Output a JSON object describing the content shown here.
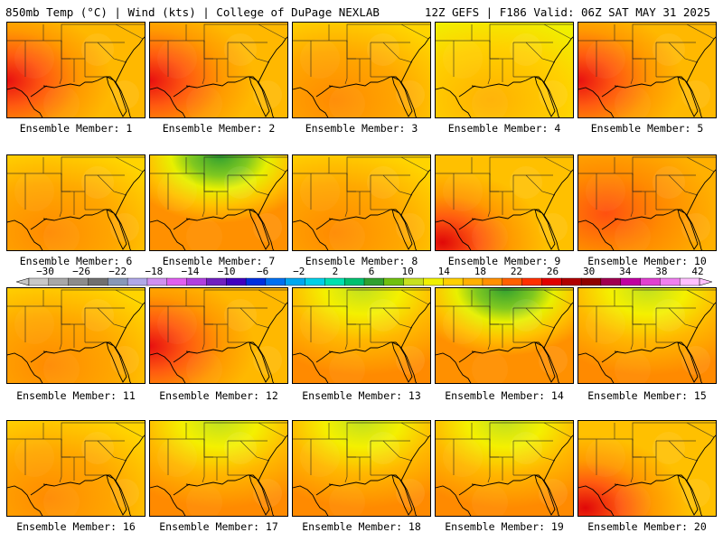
{
  "header": {
    "title_left": "850mb Temp (°C) | Wind (kts) | College of DuPage NEXLAB",
    "title_right": "12Z GEFS | F186 Valid: 06Z SAT MAY 31 2025"
  },
  "members": [
    {
      "label": "Ensemble Member: 1",
      "pattern": "hot-west"
    },
    {
      "label": "Ensemble Member: 2",
      "pattern": "hot-west"
    },
    {
      "label": "Ensemble Member: 3",
      "pattern": "warm"
    },
    {
      "label": "Ensemble Member: 4",
      "pattern": "mild"
    },
    {
      "label": "Ensemble Member: 5",
      "pattern": "hot-west"
    },
    {
      "label": "Ensemble Member: 6",
      "pattern": "warm"
    },
    {
      "label": "Ensemble Member: 7",
      "pattern": "cool-north"
    },
    {
      "label": "Ensemble Member: 8",
      "pattern": "warm"
    },
    {
      "label": "Ensemble Member: 9",
      "pattern": "hot-sw"
    },
    {
      "label": "Ensemble Member: 10",
      "pattern": "hot"
    },
    {
      "label": "Ensemble Member: 11",
      "pattern": "warm"
    },
    {
      "label": "Ensemble Member: 12",
      "pattern": "hot-west"
    },
    {
      "label": "Ensemble Member: 13",
      "pattern": "warm-north-mild"
    },
    {
      "label": "Ensemble Member: 14",
      "pattern": "cool-north"
    },
    {
      "label": "Ensemble Member: 15",
      "pattern": "warm-north-mild"
    },
    {
      "label": "Ensemble Member: 16",
      "pattern": "warm"
    },
    {
      "label": "Ensemble Member: 17",
      "pattern": "warm-north-mild"
    },
    {
      "label": "Ensemble Member: 18",
      "pattern": "warm-north-mild"
    },
    {
      "label": "Ensemble Member: 19",
      "pattern": "warm-north-mild"
    },
    {
      "label": "Ensemble Member: 20",
      "pattern": "hot-sw"
    }
  ],
  "colorbar": {
    "labels": [
      "−30",
      "−26",
      "−22",
      "−18",
      "−14",
      "−10",
      "−6",
      "−2",
      "2",
      "6",
      "10",
      "14",
      "18",
      "22",
      "26",
      "30",
      "34",
      "38",
      "42"
    ],
    "colors": [
      "#c8c8c8",
      "#a8a8a8",
      "#8c8c8c",
      "#707070",
      "#8898b8",
      "#b0a8e8",
      "#d090f0",
      "#e060f0",
      "#b040e0",
      "#7020c0",
      "#4000c0",
      "#0030e0",
      "#0070f0",
      "#00a8f0",
      "#00d0e8",
      "#00e0b0",
      "#00c070",
      "#30a030",
      "#70c010",
      "#c8e020",
      "#f0f000",
      "#ffd000",
      "#ffb000",
      "#ff9000",
      "#ff6000",
      "#ff3000",
      "#e00000",
      "#b00000",
      "#900000",
      "#a00050",
      "#c000a0",
      "#e040d0",
      "#f080f0",
      "#ffc0ff"
    ]
  }
}
